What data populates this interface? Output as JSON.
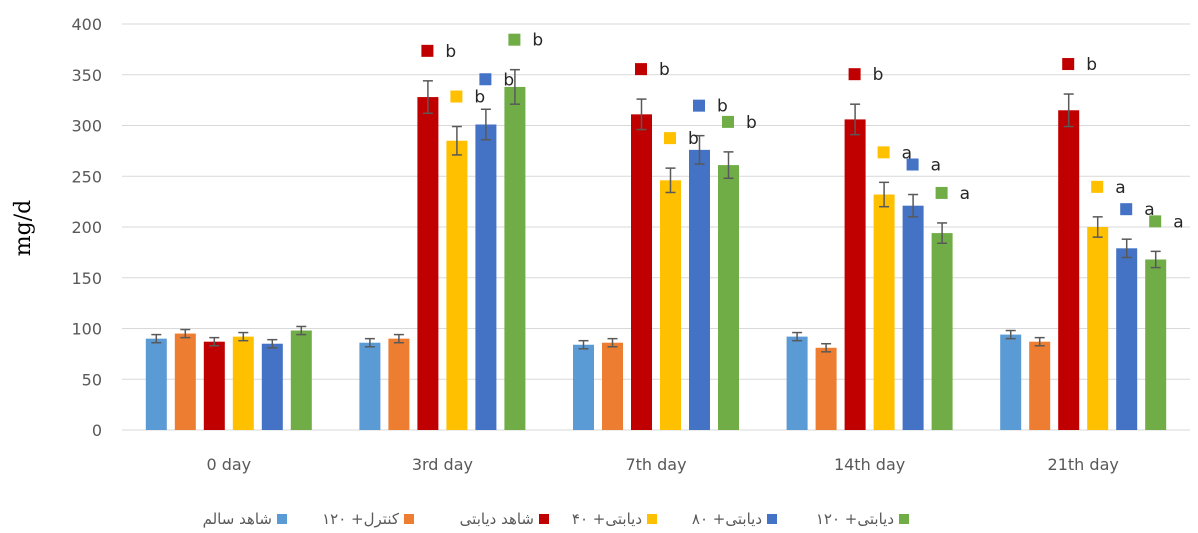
{
  "chart_data": {
    "type": "bar",
    "title": "",
    "xlabel": "",
    "ylabel": "mg/d",
    "ylim": [
      0,
      400
    ],
    "yticks": [
      0,
      50,
      100,
      150,
      200,
      250,
      300,
      350,
      400
    ],
    "grid": true,
    "legend_position": "bottom",
    "categories": [
      "0 day",
      "3rd day",
      "7th day",
      "14th day",
      "21th day"
    ],
    "series": [
      {
        "name": "شاهد سالم",
        "color": "#5B9BD5",
        "values": [
          90,
          86,
          84,
          92,
          94
        ],
        "errors": [
          4,
          4,
          4,
          4,
          4
        ],
        "labels": [
          "",
          "",
          "",
          "",
          ""
        ]
      },
      {
        "name": "کنترل+ ۱۲۰",
        "color": "#ED7D31",
        "values": [
          95,
          90,
          86,
          81,
          87
        ],
        "errors": [
          4,
          4,
          4,
          4,
          4
        ],
        "labels": [
          "",
          "",
          "",
          "",
          ""
        ]
      },
      {
        "name": "شاهد دیابتی",
        "color": "#C00000",
        "values": [
          87,
          328,
          311,
          306,
          315
        ],
        "errors": [
          4,
          16,
          15,
          15,
          16
        ],
        "labels": [
          "",
          "b",
          "b",
          "b",
          "b"
        ]
      },
      {
        "name": "دیابتی+ ۴۰",
        "color": "#FFC000",
        "values": [
          92,
          285,
          246,
          232,
          200
        ],
        "errors": [
          4,
          14,
          12,
          12,
          10
        ],
        "labels": [
          "",
          "b",
          "b",
          "a",
          "a"
        ]
      },
      {
        "name": "دیابتی+ ۸۰",
        "color": "#4472C4",
        "values": [
          85,
          301,
          276,
          221,
          179
        ],
        "errors": [
          4,
          15,
          14,
          11,
          9
        ],
        "labels": [
          "",
          "b",
          "b",
          "a",
          "a"
        ]
      },
      {
        "name": "دیابتی+ ۱۲۰",
        "color": "#70AD47",
        "values": [
          98,
          338,
          261,
          194,
          168
        ],
        "errors": [
          4,
          17,
          13,
          10,
          8
        ],
        "labels": [
          "",
          "b",
          "b",
          "a",
          "a"
        ]
      }
    ]
  }
}
